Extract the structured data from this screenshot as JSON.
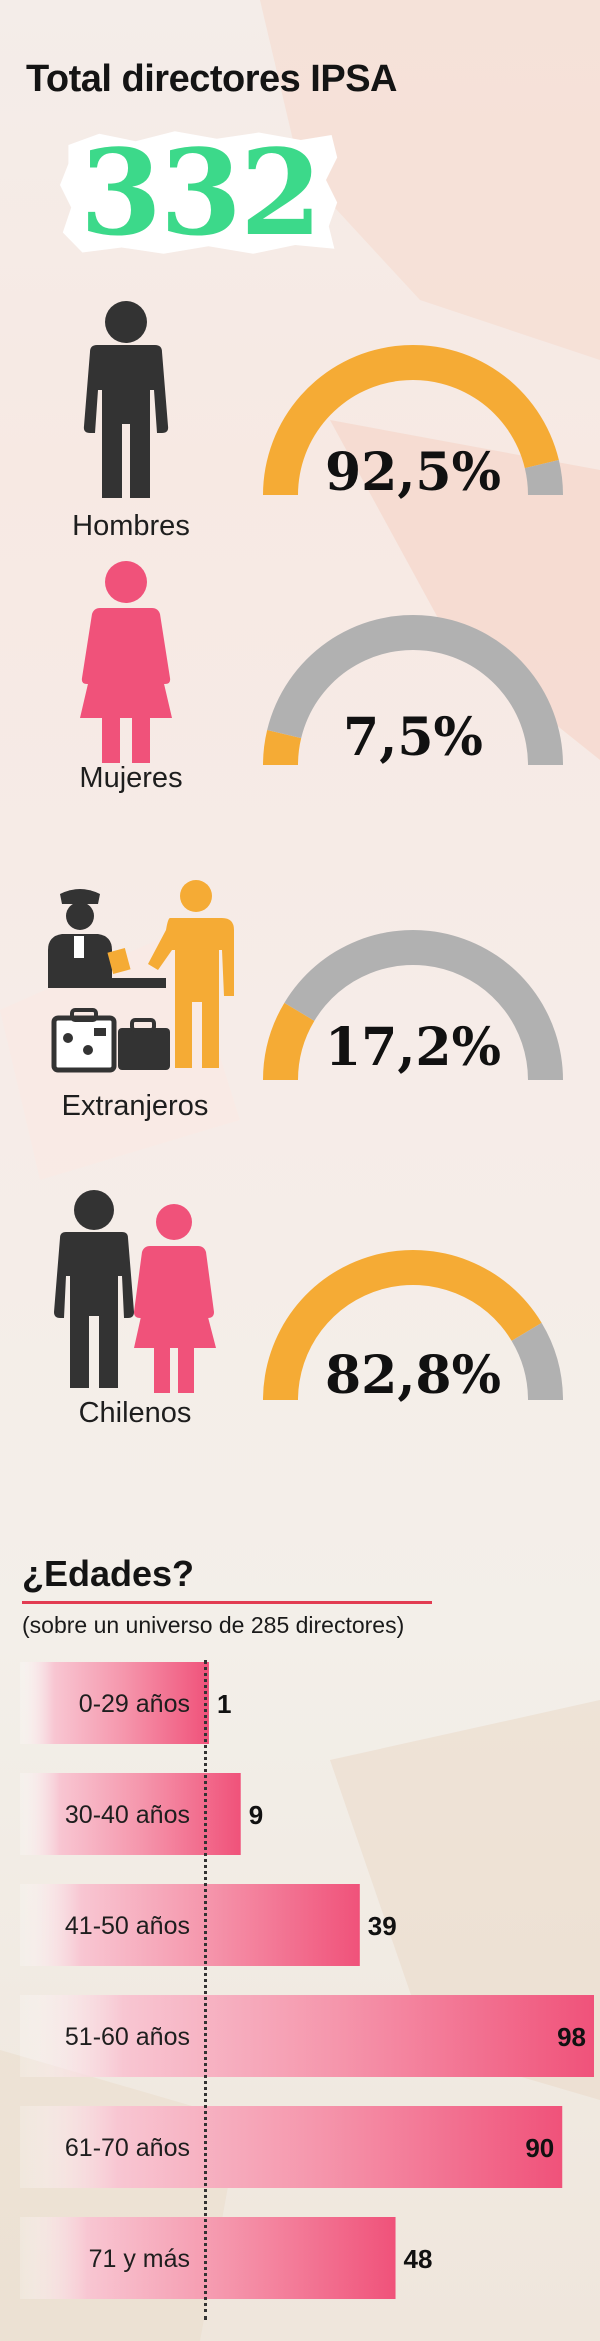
{
  "header": {
    "title": "Total directores IPSA",
    "total": "332"
  },
  "groups": [
    {
      "label": "Hombres",
      "value": "92,5%",
      "fraction": 0.925,
      "icon": "man-icon"
    },
    {
      "label": "Mujeres",
      "value": "7,5%",
      "fraction": 0.075,
      "icon": "woman-icon"
    },
    {
      "label": "Extranjeros",
      "value": "17,2%",
      "fraction": 0.172,
      "icon": "travelers-icon"
    },
    {
      "label": "Chilenos",
      "value": "82,8%",
      "fraction": 0.828,
      "icon": "couple-icon"
    }
  ],
  "colors": {
    "orange": "#f5ab35",
    "grey": "#b1b1b1",
    "dark": "#333333",
    "pink": "#f0527a",
    "green": "#3cd98a",
    "rule": "#e23c52"
  },
  "ages": {
    "title": "¿Edades?",
    "subtitle": "(sobre un universo de 285 directores)"
  },
  "chart_data": {
    "type": "bar",
    "orientation": "horizontal",
    "title": "¿Edades?",
    "subtitle": "(sobre un universo de 285 directores)",
    "categories": [
      "0-29 años",
      "30-40 años",
      "41-50 años",
      "51-60 años",
      "61-70 años",
      "71 y más"
    ],
    "values": [
      1,
      9,
      39,
      98,
      90,
      48
    ],
    "xlim": [
      0,
      98
    ],
    "grid": false,
    "legend": "none"
  }
}
